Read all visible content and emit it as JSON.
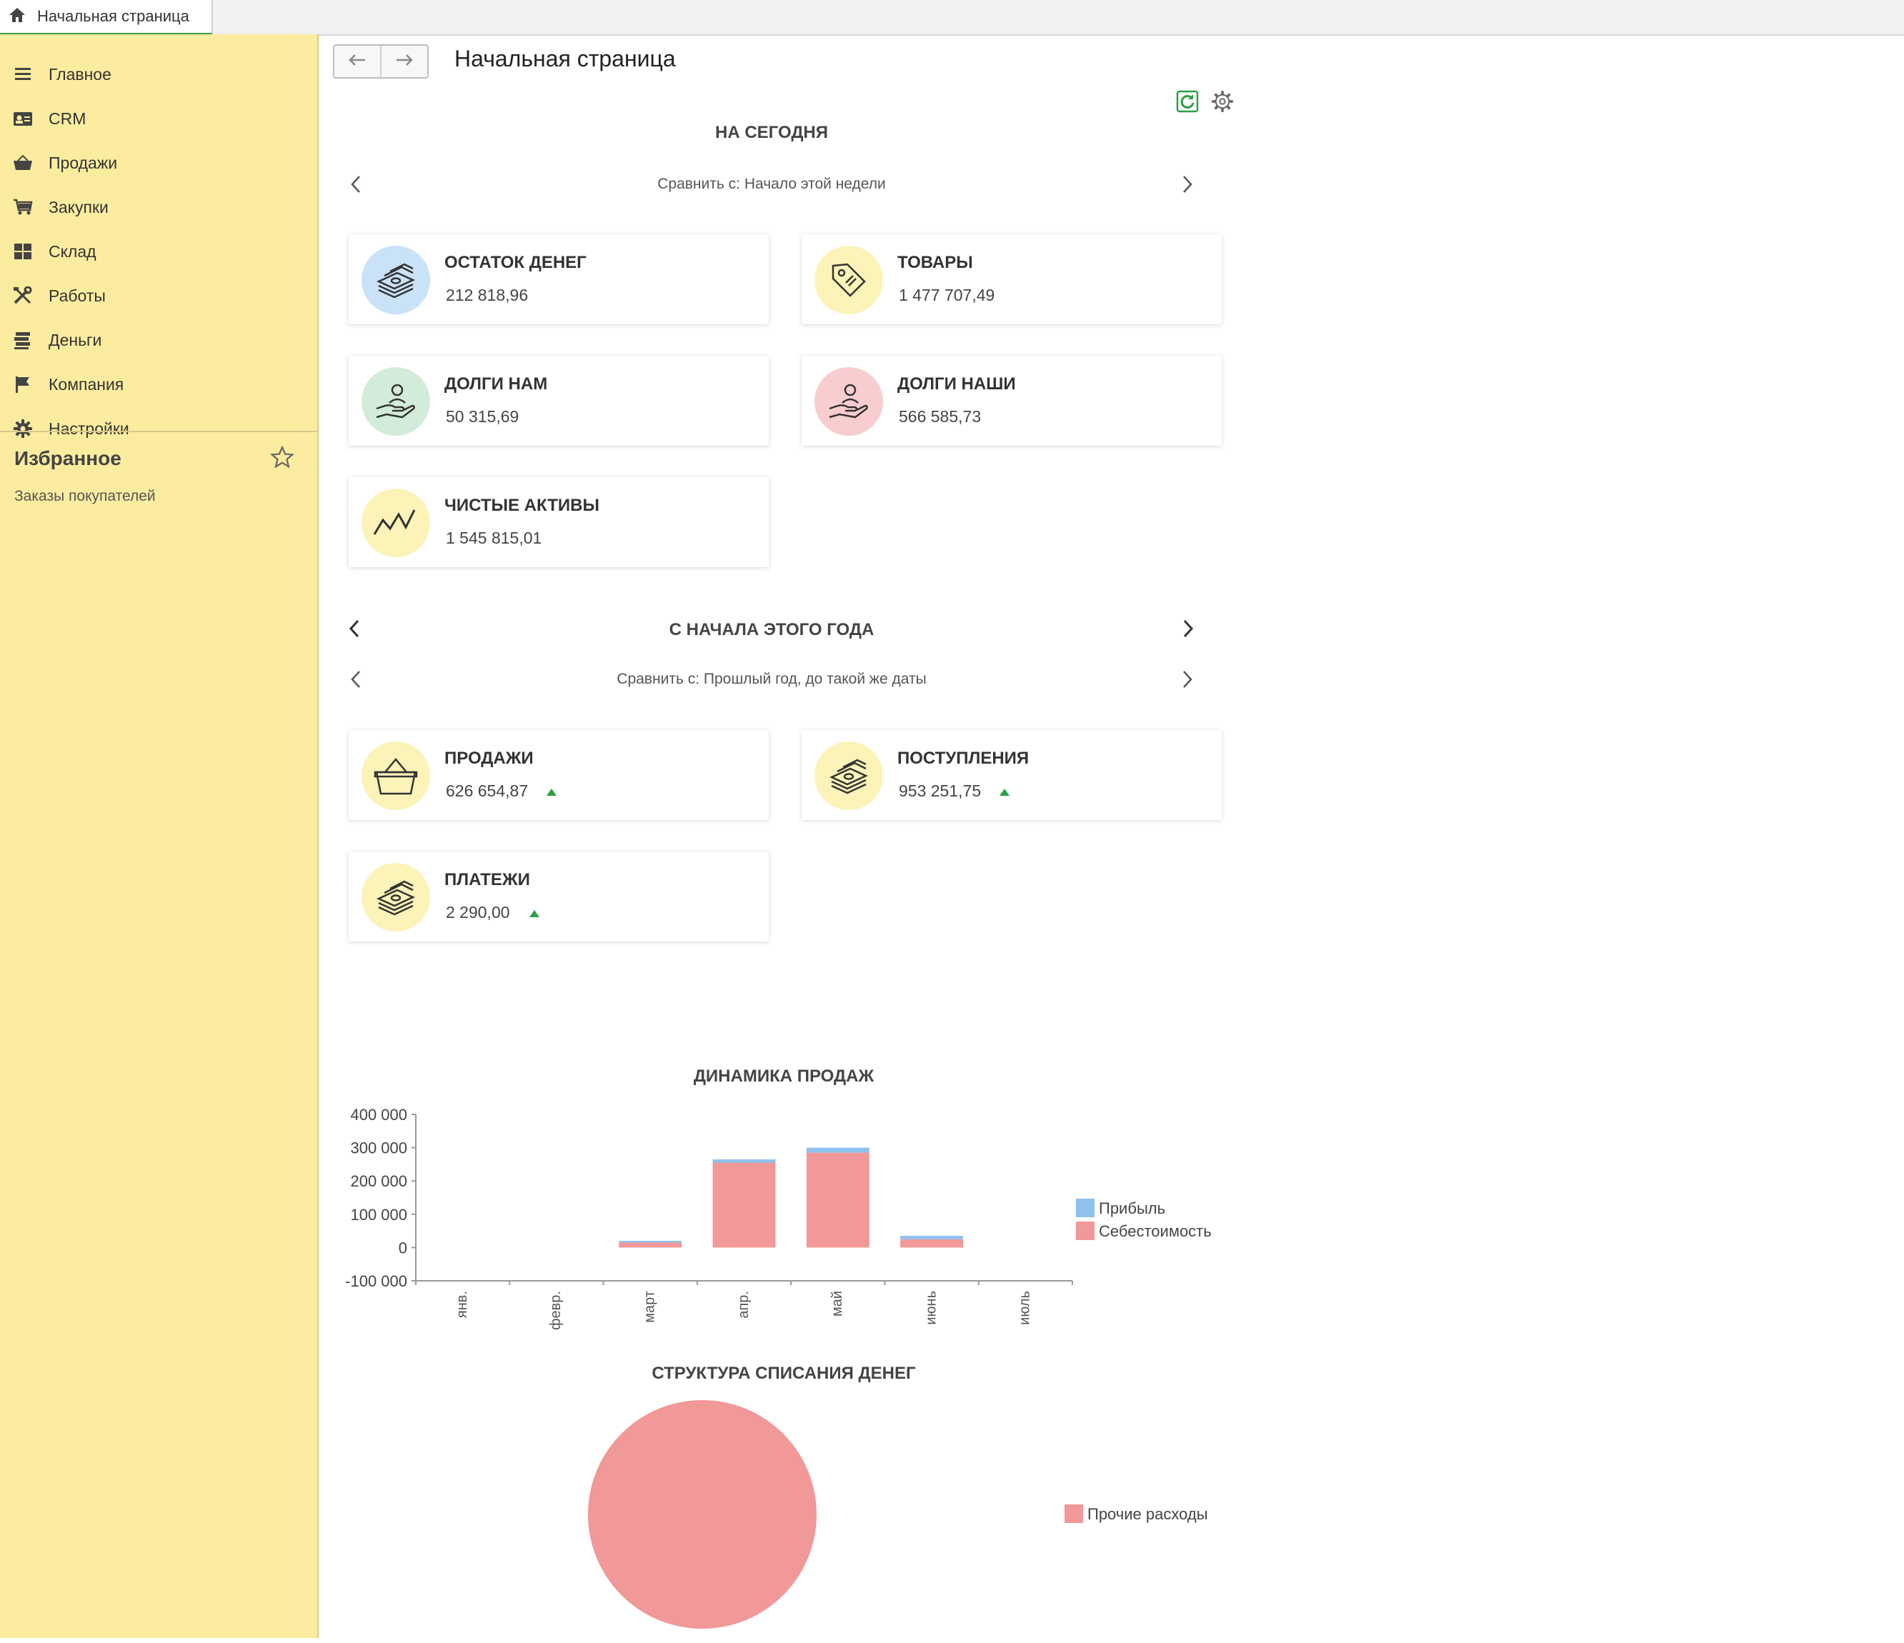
{
  "tab": {
    "label": "Начальная страница"
  },
  "sidebar": {
    "items": [
      {
        "label": "Главное",
        "icon": "menu-icon"
      },
      {
        "label": "CRM",
        "icon": "contact-card-icon"
      },
      {
        "label": "Продажи",
        "icon": "basket-icon"
      },
      {
        "label": "Закупки",
        "icon": "cart-icon"
      },
      {
        "label": "Склад",
        "icon": "warehouse-icon"
      },
      {
        "label": "Работы",
        "icon": "tools-icon"
      },
      {
        "label": "Деньги",
        "icon": "money-icon"
      },
      {
        "label": "Компания",
        "icon": "flag-icon"
      },
      {
        "label": "Настройки",
        "icon": "gear-icon"
      }
    ],
    "favorites": {
      "title": "Избранное",
      "items": [
        "Заказы покупателей"
      ]
    }
  },
  "header": {
    "title": "Начальная страница"
  },
  "today": {
    "title": "НА СЕГОДНЯ",
    "compare": "Сравнить с: Начало этой недели",
    "cards": [
      {
        "title": "ОСТАТОК ДЕНЕГ",
        "value": "212 818,96",
        "icon": "money-stack-icon",
        "color": "#c9e2f7"
      },
      {
        "title": "ТОВАРЫ",
        "value": "1 477 707,49",
        "icon": "price-tag-icon",
        "color": "#fcf3b8"
      },
      {
        "title": "ДОЛГИ НАМ",
        "value": "50 315,69",
        "icon": "hand-person-icon",
        "color": "#d3ecd9"
      },
      {
        "title": "ДОЛГИ НАШИ",
        "value": "566 585,73",
        "icon": "hand-person-icon",
        "color": "#f8cdd0"
      },
      {
        "title": "ЧИСТЫЕ АКТИВЫ",
        "value": "1 545 815,01",
        "icon": "trend-line-icon",
        "color": "#fcf3b8"
      }
    ]
  },
  "year": {
    "title": "С НАЧАЛА ЭТОГО ГОДА",
    "compare": "Сравнить с: Прошлый год, до такой же даты",
    "cards": [
      {
        "title": "ПРОДАЖИ",
        "value": "626 654,87",
        "icon": "basket-icon",
        "color": "#fcf3b8",
        "trend": "up"
      },
      {
        "title": "ПОСТУПЛЕНИЯ",
        "value": "953 251,75",
        "icon": "money-stack-icon",
        "color": "#fcf3b8",
        "trend": "up"
      },
      {
        "title": "ПЛАТЕЖИ",
        "value": "2 290,00",
        "icon": "money-stack-icon",
        "color": "#fcf3b8",
        "trend": "up"
      }
    ]
  },
  "colors": {
    "profit": "#8ec1ee",
    "cost": "#f19898",
    "trend_up": "#2aa043",
    "sidebar_bg": "#fcec9f"
  },
  "chart_data": [
    {
      "type": "bar",
      "stacked": true,
      "title": "ДИНАМИКА ПРОДАЖ",
      "categories": [
        "янв.",
        "февр.",
        "март",
        "апр.",
        "май",
        "июнь",
        "июль"
      ],
      "series": [
        {
          "name": "Себестоимость",
          "values": [
            0,
            0,
            15000,
            255000,
            285000,
            25000,
            0
          ]
        },
        {
          "name": "Прибыль",
          "values": [
            0,
            0,
            5000,
            10000,
            15000,
            10000,
            0
          ]
        }
      ],
      "ylim": [
        -100000,
        400000
      ],
      "yticks": [
        "400 000",
        "300 000",
        "200 000",
        "100 000",
        "0",
        "-100 000"
      ],
      "legend_position": "right"
    },
    {
      "type": "pie",
      "title": "СТРУКТУРА СПИСАНИЯ ДЕНЕГ",
      "categories": [
        "Прочие расходы"
      ],
      "values": [
        100
      ],
      "legend_position": "right"
    }
  ]
}
